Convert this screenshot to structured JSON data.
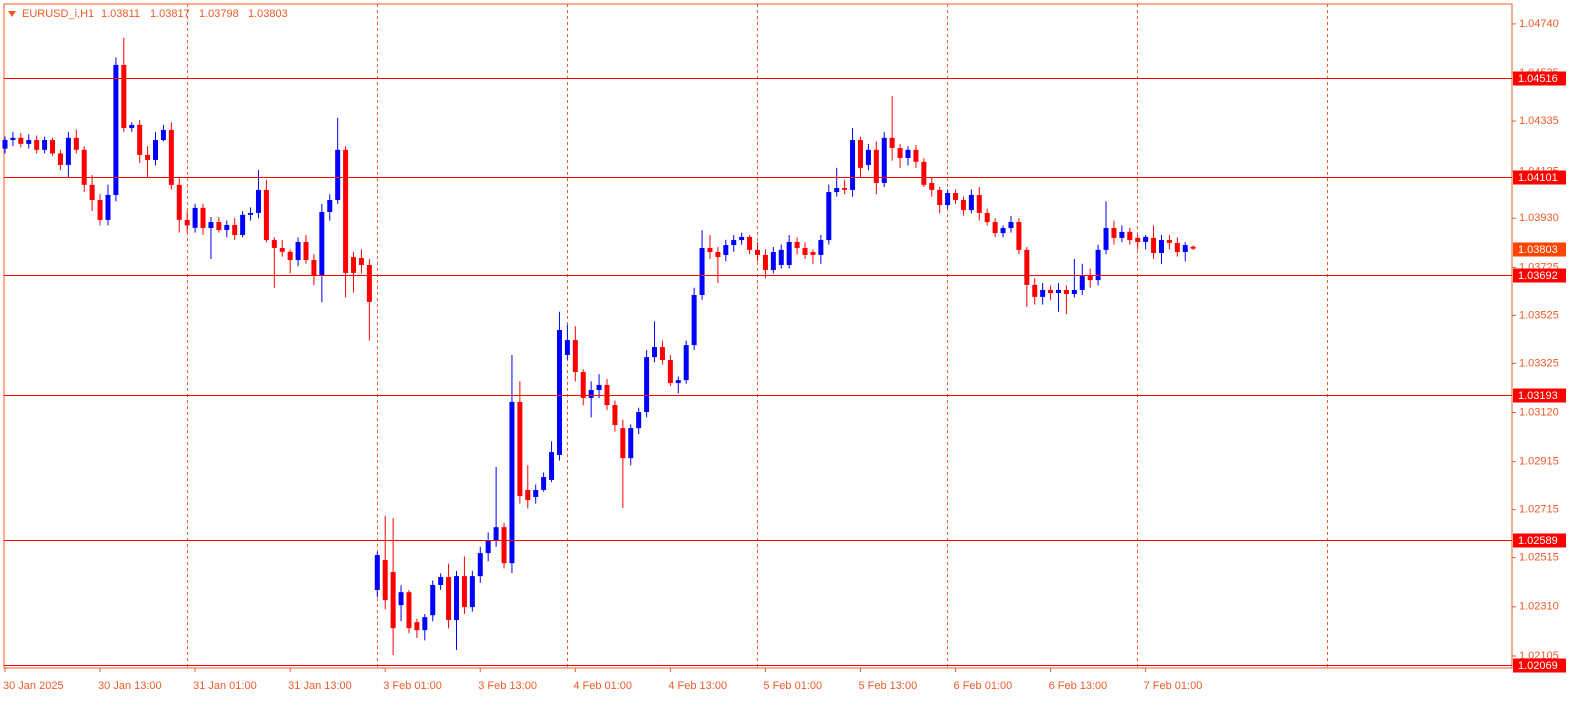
{
  "chart_data": {
    "type": "candlestick",
    "symbol": "EURUSD_i,H1",
    "title_ohlc": [
      1.03811,
      1.03817,
      1.03798,
      1.03803
    ],
    "bull_color": "#0000ff",
    "bear_color": "#ff0000",
    "level_color": "#ff0000",
    "current_color": "#ff4500",
    "xlim": [
      0,
      190
    ],
    "ylim": [
      1.02055,
      1.04823
    ],
    "xticks": [
      {
        "value": 0,
        "label": "30 Jan 2025"
      },
      {
        "value": 12,
        "label": "30 Jan 13:00"
      },
      {
        "value": 24,
        "label": "31 Jan 01:00"
      },
      {
        "value": 36,
        "label": "31 Jan 13:00"
      },
      {
        "value": 48,
        "label": "3 Feb 01:00"
      },
      {
        "value": 60,
        "label": "3 Feb 13:00"
      },
      {
        "value": 72,
        "label": "4 Feb 01:00"
      },
      {
        "value": 84,
        "label": "4 Feb 13:00"
      },
      {
        "value": 96,
        "label": "5 Feb 01:00"
      },
      {
        "value": 108,
        "label": "5 Feb 13:00"
      },
      {
        "value": 120,
        "label": "6 Feb 01:00"
      },
      {
        "value": 132,
        "label": "6 Feb 13:00"
      },
      {
        "value": 144,
        "label": "7 Feb 01:00"
      }
    ],
    "yticks": [
      {
        "value": 1.0474,
        "label": "1.04740"
      },
      1.04535,
      1.04335,
      1.04125,
      {
        "value": 1.0393,
        "label": "1.03930"
      },
      1.03725,
      1.03525,
      1.03325,
      {
        "value": 1.0312,
        "label": "1.03120"
      },
      1.02915,
      1.02715,
      1.02515,
      {
        "value": 1.0231,
        "label": "1.02310"
      },
      1.02105
    ],
    "levels": [
      1.04516,
      1.04101,
      1.03692,
      1.03193,
      1.02589,
      1.02069
    ],
    "open": [
      1.0422,
      1.04256,
      1.04265,
      1.0424,
      1.04256,
      1.04215,
      1.04256,
      1.042,
      1.04152,
      1.04265,
      1.04215,
      1.04069,
      1.04006,
      1.03923,
      1.04027,
      1.04569,
      1.04306,
      1.04319,
      1.04194,
      1.04173,
      1.04256,
      1.04298,
      1.04069,
      1.03923,
      1.0389,
      1.03973,
      1.03889,
      1.03914,
      1.03881,
      1.03902,
      1.0386,
      1.03944,
      1.03952,
      1.04048,
      1.03839,
      1.03806,
      1.0379,
      1.03756,
      1.03831,
      1.03756,
      1.03693,
      1.03956,
      1.04006,
      1.04215,
      1.03768,
      1.03764,
      1.03735,
      1.0238,
      1.02505,
      1.02455,
      1.02317,
      1.02371,
      1.02246,
      1.02213,
      1.02275,
      1.02401,
      1.02434,
      1.02255,
      1.02438,
      1.02309,
      1.02438,
      1.02534,
      1.02588,
      1.02642,
      1.02492,
      1.03164,
      1.02797,
      1.02768,
      1.02797,
      1.02839,
      1.02943,
      1.0336,
      1.03422,
      1.03289,
      1.03181,
      1.03214,
      1.03235,
      1.03151,
      1.03055,
      1.0293,
      1.03055,
      1.03122,
      1.03351,
      1.03393,
      1.03339,
      1.03243,
      1.03255,
      1.03401,
      1.0361,
      1.03806,
      1.03789,
      1.03777,
      1.03818,
      1.03839,
      1.03852,
      1.03798,
      1.03777,
      1.03714,
      1.03735,
      1.03735,
      1.03831,
      1.03806,
      1.03789,
      1.03777,
      1.03839,
      1.04039,
      1.04056,
      1.04048,
      1.04256,
      1.04152,
      1.04215,
      1.04077,
      1.04265,
      1.04223,
      1.04181,
      1.04215,
      1.04165,
      1.04077,
      1.04048,
      1.03985,
      1.04035,
      1.04006,
      1.03964,
      1.04027,
      1.03952,
      1.03914,
      1.03868,
      1.03889,
      1.03914,
      1.03798,
      1.03652,
      1.03602,
      1.03631,
      1.03618,
      1.03631,
      1.03614,
      1.03631,
      1.03693,
      1.03672,
      1.03798,
      1.03889,
      1.03848,
      1.03873,
      1.03848,
      1.03831,
      1.03848,
      1.03785,
      1.03839,
      1.03827,
      1.03789,
      1.03811
    ],
    "high": [
      1.0427,
      1.0429,
      1.04285,
      1.0428,
      1.04275,
      1.0427,
      1.04265,
      1.04215,
      1.0429,
      1.043,
      1.0423,
      1.0411,
      1.0403,
      1.0407,
      1.046,
      1.04682,
      1.0433,
      1.0434,
      1.0423,
      1.0429,
      1.04319,
      1.0433,
      1.041,
      1.0396,
      1.0399,
      1.0399,
      1.03935,
      1.03935,
      1.0392,
      1.0393,
      1.0396,
      1.03975,
      1.04131,
      1.0409,
      1.0385,
      1.0384,
      1.038,
      1.0385,
      1.0386,
      1.0378,
      1.0399,
      1.0403,
      1.04348,
      1.0423,
      1.0379,
      1.038,
      1.0376,
      1.0254,
      1.0269,
      1.0268,
      1.024,
      1.0238,
      1.0226,
      1.0228,
      1.0242,
      1.0245,
      1.0249,
      1.0246,
      1.0252,
      1.0246,
      1.0256,
      1.0262,
      1.02893,
      1.0266,
      1.0336,
      1.0325,
      1.029,
      1.0282,
      1.0287,
      1.03,
      1.0354,
      1.03485,
      1.0348,
      1.033,
      1.0325,
      1.0328,
      1.0326,
      1.0317,
      1.0309,
      1.0307,
      1.0314,
      1.0338,
      1.035,
      1.0342,
      1.0336,
      1.0327,
      1.0342,
      1.0364,
      1.0388,
      1.0386,
      1.0381,
      1.0384,
      1.0386,
      1.0387,
      1.0386,
      1.0383,
      1.038,
      1.0381,
      1.0382,
      1.0386,
      1.0385,
      1.0383,
      1.038,
      1.0386,
      1.0407,
      1.0414,
      1.0409,
      1.04306,
      1.0427,
      1.0424,
      1.0425,
      1.0429,
      1.0444,
      1.0424,
      1.0423,
      1.04235,
      1.0418,
      1.041,
      1.0406,
      1.0405,
      1.0405,
      1.0402,
      1.0405,
      1.0406,
      1.0397,
      1.0393,
      1.039,
      1.0394,
      1.0393,
      1.0381,
      1.0368,
      1.0366,
      1.0365,
      1.0366,
      1.0365,
      1.0376,
      1.0374,
      1.0372,
      1.0382,
      1.04,
      1.0392,
      1.039,
      1.0389,
      1.0386,
      1.0386,
      1.039,
      1.0386,
      1.0386,
      1.0385,
      1.0383,
      1.03817
    ],
    "low": [
      1.042,
      1.0423,
      1.04225,
      1.0422,
      1.042,
      1.042,
      1.0419,
      1.0413,
      1.041,
      1.042,
      1.0404,
      1.0396,
      1.039,
      1.039,
      1.04,
      1.0429,
      1.0429,
      1.0416,
      1.041,
      1.0415,
      1.0425,
      1.0405,
      1.0387,
      1.0387,
      1.0387,
      1.0386,
      1.0376,
      1.0387,
      1.0385,
      1.0384,
      1.0385,
      1.0392,
      1.0393,
      1.0383,
      1.0364,
      1.0377,
      1.037,
      1.0373,
      1.0374,
      1.0365,
      1.0358,
      1.0392,
      1.0399,
      1.036,
      1.0362,
      1.037,
      1.0342,
      1.0235,
      1.023,
      1.02109,
      1.0225,
      1.022,
      1.0218,
      1.0217,
      1.0225,
      1.0238,
      1.0222,
      1.0213,
      1.0228,
      1.0229,
      1.0241,
      1.025,
      1.0256,
      1.0247,
      1.0245,
      1.0274,
      1.0272,
      1.0274,
      1.0279,
      1.0283,
      1.0292,
      1.0334,
      1.0325,
      1.0315,
      1.031,
      1.0318,
      1.0313,
      1.0304,
      1.02722,
      1.029,
      1.0303,
      1.031,
      1.0333,
      1.0332,
      1.0323,
      1.032,
      1.0324,
      1.0338,
      1.0359,
      1.0376,
      1.0366,
      1.0375,
      1.0379,
      1.0382,
      1.0378,
      1.0375,
      1.0368,
      1.037,
      1.0372,
      1.0372,
      1.0378,
      1.0376,
      1.0374,
      1.0374,
      1.0382,
      1.0402,
      1.0403,
      1.0402,
      1.041,
      1.0413,
      1.0403,
      1.0406,
      1.0417,
      1.0414,
      1.0415,
      1.0414,
      1.0406,
      1.0402,
      1.0395,
      1.0397,
      1.0399,
      1.0394,
      1.0395,
      1.0392,
      1.039,
      1.0385,
      1.0385,
      1.0387,
      1.0378,
      1.0356,
      1.0357,
      1.0357,
      1.0359,
      1.0354,
      1.0353,
      1.036,
      1.0361,
      1.0364,
      1.0365,
      1.0378,
      1.0382,
      1.0383,
      1.0382,
      1.038,
      1.038,
      1.0376,
      1.0374,
      1.038,
      1.0377,
      1.0375,
      1.03798
    ],
    "close": [
      1.04256,
      1.04265,
      1.0424,
      1.04256,
      1.04215,
      1.04256,
      1.042,
      1.04152,
      1.04265,
      1.04215,
      1.04069,
      1.04006,
      1.03923,
      1.04027,
      1.04569,
      1.04306,
      1.04319,
      1.04194,
      1.04173,
      1.04256,
      1.04298,
      1.04069,
      1.03923,
      1.039,
      1.03973,
      1.03889,
      1.03914,
      1.03881,
      1.03902,
      1.0386,
      1.03944,
      1.03952,
      1.04048,
      1.03839,
      1.03806,
      1.0379,
      1.03756,
      1.03831,
      1.03756,
      1.03693,
      1.03956,
      1.04006,
      1.04215,
      1.03702,
      1.03702,
      1.03735,
      1.03581,
      1.02526,
      1.02338,
      1.02221,
      1.02371,
      1.02221,
      1.02213,
      1.02267,
      1.02401,
      1.02434,
      1.02255,
      1.02438,
      1.02309,
      1.02438,
      1.02534,
      1.02588,
      1.02642,
      1.02492,
      1.03164,
      1.02772,
      1.02755,
      1.02797,
      1.02851,
      1.02955,
      1.03464,
      1.03422,
      1.03289,
      1.03181,
      1.03214,
      1.03235,
      1.03151,
      1.03068,
      1.0293,
      1.03055,
      1.03122,
      1.03351,
      1.03393,
      1.03339,
      1.03243,
      1.03255,
      1.03401,
      1.0361,
      1.03806,
      1.03789,
      1.03768,
      1.03818,
      1.03839,
      1.03852,
      1.03798,
      1.03777,
      1.03714,
      1.03789,
      1.03798,
      1.03831,
      1.03806,
      1.03777,
      1.03777,
      1.03839,
      1.04039,
      1.04056,
      1.04048,
      1.04256,
      1.0414,
      1.04215,
      1.04077,
      1.04265,
      1.04223,
      1.04181,
      1.04215,
      1.04165,
      1.04069,
      1.04048,
      1.03985,
      1.04035,
      1.04006,
      1.03964,
      1.04027,
      1.03952,
      1.03914,
      1.03868,
      1.03889,
      1.03914,
      1.03798,
      1.03652,
      1.03602,
      1.03631,
      1.03618,
      1.03631,
      1.03614,
      1.03631,
      1.03693,
      1.03672,
      1.03798,
      1.03889,
      1.03848,
      1.03873,
      1.03839,
      1.03831,
      1.03852,
      1.03785,
      1.03839,
      1.03827,
      1.03789,
      1.03818,
      1.03803
    ]
  }
}
